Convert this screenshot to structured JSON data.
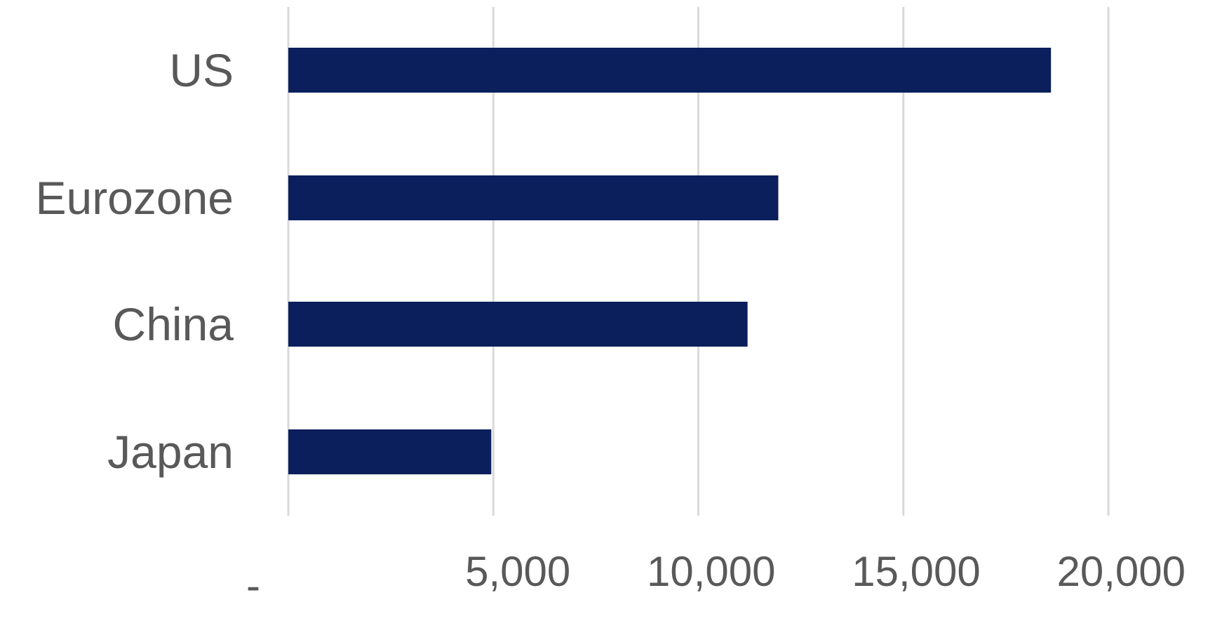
{
  "chart_data": {
    "type": "bar",
    "orientation": "horizontal",
    "categories": [
      "US",
      "Eurozone",
      "China",
      "Japan"
    ],
    "values": [
      18600,
      11950,
      11200,
      4950
    ],
    "x_tick_values": [
      0,
      5000,
      10000,
      15000,
      20000
    ],
    "x_tick_labels": [
      "-",
      "5,000",
      "10,000",
      "15,000",
      "20,000"
    ],
    "xlim": [
      0,
      20000
    ],
    "grid": "vertical",
    "legend": "none",
    "title": "",
    "xlabel": "",
    "ylabel": ""
  },
  "colors": {
    "bar": "#0B1F5C",
    "grid": "#D9D9D9",
    "text": "#595959",
    "background": "#FFFFFF"
  }
}
